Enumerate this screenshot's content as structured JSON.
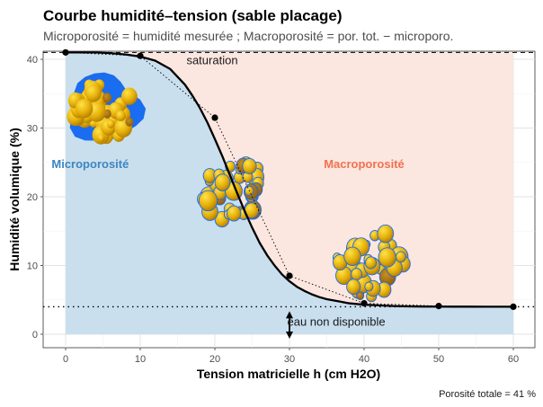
{
  "header": {
    "title": "Courbe humidité–tension (sable placage)",
    "subtitle": "Microporosité = humidité mesurée ; Macroporosité = por. tot. − microporo."
  },
  "caption": "Porosité totale = 41 %",
  "chart_data": {
    "type": "line",
    "xlabel": "Tension matricielle h (cm H2O)",
    "ylabel": "Humidité volumique (%)",
    "xlim": [
      0,
      60
    ],
    "ylim": [
      0,
      41
    ],
    "x_ticks": [
      0,
      10,
      20,
      30,
      40,
      50,
      60
    ],
    "y_ticks": [
      0,
      10,
      20,
      30,
      40
    ],
    "grid": true,
    "total_porosity": 41,
    "residual_water": 4,
    "points": {
      "x": [
        0,
        10,
        20,
        30,
        40,
        50,
        60
      ],
      "y": [
        41,
        40.5,
        31.5,
        8.5,
        4.5,
        4.1,
        4.0
      ]
    },
    "curve": {
      "x": [
        0,
        2,
        4,
        6,
        8,
        10,
        12,
        14,
        16,
        17,
        18,
        19,
        20,
        21,
        22,
        23,
        24,
        25,
        26,
        27,
        28,
        29,
        30,
        31,
        32,
        33,
        34,
        35,
        36,
        37,
        38,
        40,
        42,
        44,
        46,
        48,
        50,
        52,
        54,
        56,
        58,
        60
      ],
      "y": [
        41,
        41,
        41,
        40.9,
        40.7,
        40.4,
        39.8,
        38.6,
        36.3,
        34.7,
        32.9,
        30.8,
        28.4,
        25.9,
        23.2,
        20.5,
        17.9,
        15.5,
        13.3,
        11.5,
        10,
        8.7,
        7.7,
        6.9,
        6.3,
        5.8,
        5.4,
        5.1,
        4.9,
        4.7,
        4.5,
        4.3,
        4.2,
        4.1,
        4.05,
        4.03,
        4.02,
        4.01,
        4.01,
        4,
        4,
        4
      ]
    },
    "annotations": {
      "saturation": "saturation",
      "non_available": "eau non disponible",
      "micro": "Microporosité",
      "macro": "Macroporosité"
    },
    "colors": {
      "micro_fill": "#c9dfee",
      "macro_fill": "#fce6e0",
      "micro_text": "#3d86bf",
      "macro_text": "#f0724f",
      "pore_blue": "#1a6cf0",
      "grain": "#e0b00a"
    }
  }
}
